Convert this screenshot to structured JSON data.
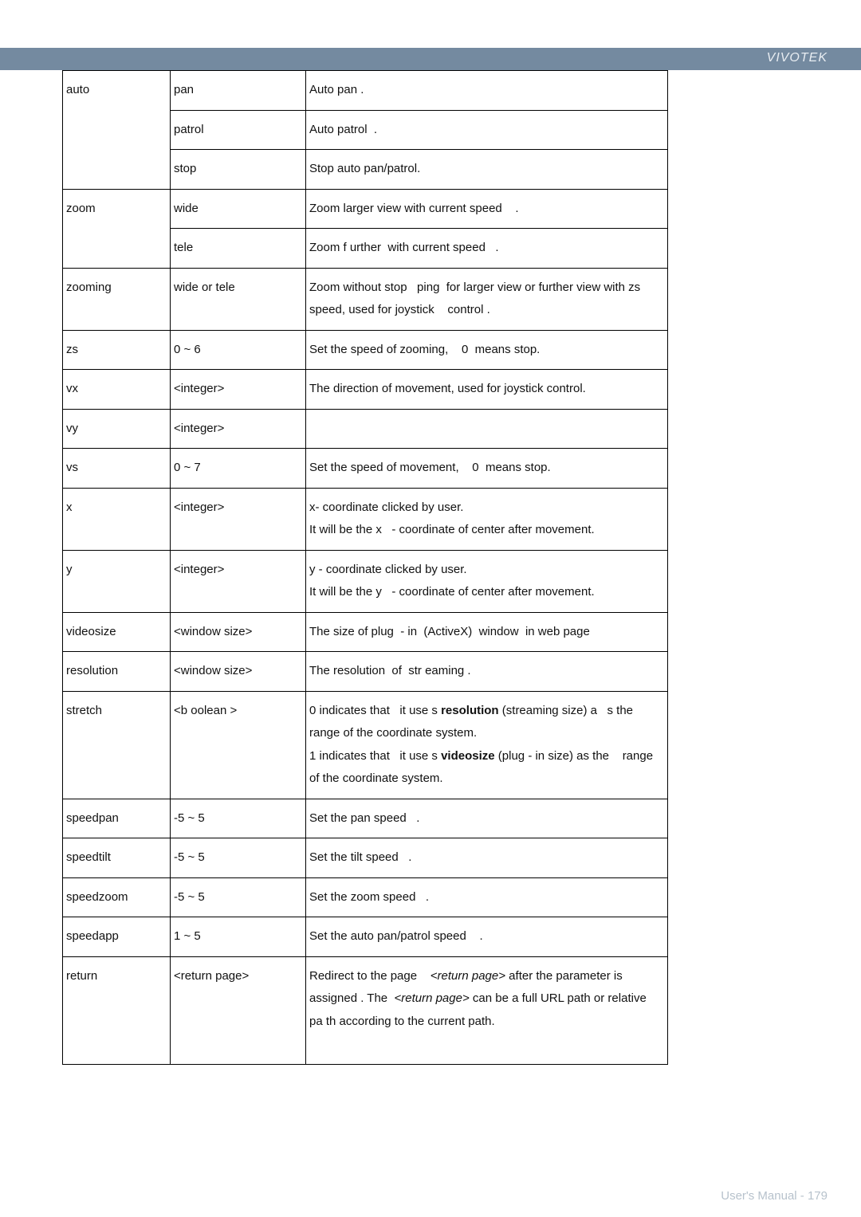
{
  "header": {
    "brand": "VIVOTEK"
  },
  "footer": {
    "text": "User's Manual - 179"
  },
  "rows": [
    {
      "p": "auto",
      "rs": 3,
      "v": "pan",
      "d": "Auto pan ."
    },
    {
      "v": "patrol",
      "d": "Auto patrol  ."
    },
    {
      "v": "stop",
      "d": "Stop auto pan/patrol."
    },
    {
      "p": "zoom",
      "rs": 2,
      "v": "wide",
      "d": "Zoom larger view with current speed    ."
    },
    {
      "v": "tele",
      "d": "Zoom f urther  with current speed   ."
    },
    {
      "p": "zooming",
      "v": "wide or tele",
      "d": "Zoom without stop   ping  for larger view or further view with zs speed, used for joystick    control ."
    },
    {
      "p": "zs",
      "v": "0 ~ 6",
      "d": "Set the speed of zooming,    0  means stop."
    },
    {
      "p": "vx",
      "v": "<integer>",
      "d": "The direction of movement, used for joystick control."
    },
    {
      "p": "vy",
      "v": "<integer>",
      "d": ""
    },
    {
      "p": "vs",
      "v": "0 ~ 7",
      "d": "Set the speed of movement,    0  means stop."
    },
    {
      "p": "x",
      "v": "<integer>",
      "d": "x- coordinate clicked by user.\nIt will be the x   - coordinate of center after movement."
    },
    {
      "p": "y",
      "v": "<integer>",
      "d": "y - coordinate clicked by user.\nIt will be the y   - coordinate of center after movement."
    },
    {
      "p": "videosize",
      "v": "<window size>",
      "d": "The size of plug  - in  (ActiveX)  window  in web page"
    },
    {
      "p": "resolution",
      "v": "<window size>",
      "d": "The resolution  of  str eaming ."
    },
    {
      "p": "stretch",
      "v": "<b oolean >",
      "special": "stretch"
    },
    {
      "p": "speedpan",
      "v": "-5 ~ 5",
      "d": "Set the pan speed   ."
    },
    {
      "p": "speedtilt",
      "v": "-5 ~ 5",
      "d": "Set the tilt speed   ."
    },
    {
      "p": "speedzoom",
      "v": "-5 ~ 5",
      "d": "Set the zoom speed   ."
    },
    {
      "p": "speedapp",
      "v": "1 ~ 5",
      "d": "Set the auto pan/patrol speed    ."
    },
    {
      "p": "return",
      "v": "<return page>",
      "special": "return"
    }
  ],
  "stretch": {
    "pre1": "0 indicates that   it use s ",
    "bold1": "resolution",
    "mid1": " (streaming size) a   s the range of the coordinate system.",
    "pre2": "1 indicates that   it use s ",
    "bold2": "videosize",
    "mid2": " (plug - in size) as the    range of the coordinate system."
  },
  "return": {
    "pre": "Redirect to the page    ",
    "it1": "<return page>",
    "mid1": " after the parameter is assigned . The  ",
    "it2": "<return page>",
    "mid2": " can be a full URL path or relative pa th according to the current path."
  }
}
